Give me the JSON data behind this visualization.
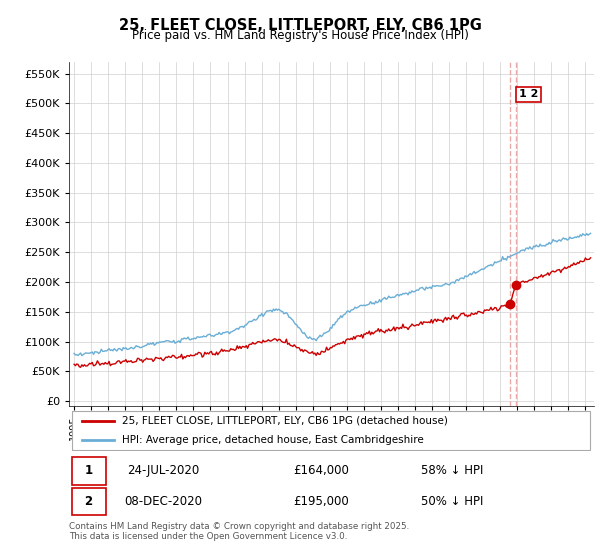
{
  "title": "25, FLEET CLOSE, LITTLEPORT, ELY, CB6 1PG",
  "subtitle": "Price paid vs. HM Land Registry's House Price Index (HPI)",
  "hpi_label": "HPI: Average price, detached house, East Cambridgeshire",
  "property_label": "25, FLEET CLOSE, LITTLEPORT, ELY, CB6 1PG (detached house)",
  "hpi_color": "#6aaed6",
  "property_color": "#cc0000",
  "dashed_line_color": "#e8a0a0",
  "sale1_date": "24-JUL-2020",
  "sale1_price": "£164,000",
  "sale1_hpi": "58% ↓ HPI",
  "sale2_date": "08-DEC-2020",
  "sale2_price": "£195,000",
  "sale2_hpi": "50% ↓ HPI",
  "yticks": [
    0,
    50000,
    100000,
    150000,
    200000,
    250000,
    300000,
    350000,
    400000,
    450000,
    500000,
    550000
  ],
  "ylim": [
    -8000,
    570000
  ],
  "xlim_start": 1994.7,
  "xlim_end": 2025.5,
  "footer": "Contains HM Land Registry data © Crown copyright and database right 2025.\nThis data is licensed under the Open Government Licence v3.0.",
  "sale1_x": 2020.56,
  "sale2_x": 2020.93,
  "sale1_y": 164000,
  "sale2_y": 195000
}
